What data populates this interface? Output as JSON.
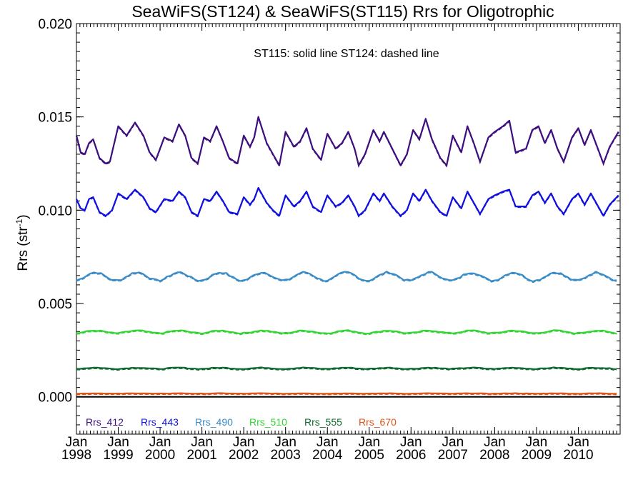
{
  "chart_data": {
    "type": "line",
    "title": "SeaWiFS(ST124) & SeaWiFS(ST115)  Rrs for Oligotrophic",
    "annotation": "ST115: solid line   ST124: dashed line",
    "ylabel": "Rrs (str",
    "ylabel_sup": "-1",
    "ylabel_close": ")",
    "xlabel": "",
    "ylim": [
      -0.002,
      0.02
    ],
    "yticks": [
      "0.000",
      "0.005",
      "0.010",
      "0.015",
      "0.020"
    ],
    "ytick_values": [
      0.0,
      0.005,
      0.01,
      0.015,
      0.02
    ],
    "xlim": [
      1998.0,
      2011.0
    ],
    "xticks": [
      {
        "month": "Jan",
        "year": "1998",
        "x": 1998.0
      },
      {
        "month": "Jan",
        "year": "1999",
        "x": 1999.0
      },
      {
        "month": "Jan",
        "year": "2000",
        "x": 2000.0
      },
      {
        "month": "Jan",
        "year": "2001",
        "x": 2001.0
      },
      {
        "month": "Jan",
        "year": "2002",
        "x": 2002.0
      },
      {
        "month": "Jan",
        "year": "2003",
        "x": 2003.0
      },
      {
        "month": "Jan",
        "year": "2004",
        "x": 2004.0
      },
      {
        "month": "Jan",
        "year": "2005",
        "x": 2005.0
      },
      {
        "month": "Jan",
        "year": "2006",
        "x": 2006.0
      },
      {
        "month": "Jan",
        "year": "2007",
        "x": 2007.0
      },
      {
        "month": "Jan",
        "year": "2008",
        "x": 2008.0
      },
      {
        "month": "Jan",
        "year": "2009",
        "x": 2009.0
      },
      {
        "month": "Jan",
        "year": "2010",
        "x": 2010.0
      }
    ],
    "zero_line": 0.0,
    "legend_placement": "bottom-left inside plot",
    "series": [
      {
        "name": "Rrs_412",
        "color": "#3f0f7f",
        "x_range": [
          1998.0,
          2010.96
        ],
        "anchors": [
          [
            1998.0,
            0.014
          ],
          [
            1998.1,
            0.0131
          ],
          [
            1998.2,
            0.013
          ],
          [
            1998.3,
            0.0136
          ],
          [
            1998.4,
            0.0138
          ],
          [
            1998.55,
            0.0128
          ],
          [
            1998.7,
            0.0125
          ],
          [
            1998.8,
            0.0126
          ],
          [
            1999.0,
            0.0145
          ],
          [
            1999.2,
            0.014
          ],
          [
            1999.4,
            0.0147
          ],
          [
            1999.6,
            0.014
          ],
          [
            1999.75,
            0.0131
          ],
          [
            1999.9,
            0.0127
          ],
          [
            2000.1,
            0.0139
          ],
          [
            2000.3,
            0.0137
          ],
          [
            2000.45,
            0.0146
          ],
          [
            2000.6,
            0.014
          ],
          [
            2000.75,
            0.0128
          ],
          [
            2000.9,
            0.0125
          ],
          [
            2001.05,
            0.0139
          ],
          [
            2001.2,
            0.0137
          ],
          [
            2001.35,
            0.0145
          ],
          [
            2001.5,
            0.0137
          ],
          [
            2001.65,
            0.0128
          ],
          [
            2001.85,
            0.0125
          ],
          [
            2002.0,
            0.014
          ],
          [
            2002.15,
            0.0134
          ],
          [
            2002.25,
            0.0139
          ],
          [
            2002.35,
            0.015
          ],
          [
            2002.55,
            0.0136
          ],
          [
            2002.7,
            0.013
          ],
          [
            2002.85,
            0.0124
          ],
          [
            2003.0,
            0.0142
          ],
          [
            2003.2,
            0.0134
          ],
          [
            2003.35,
            0.0137
          ],
          [
            2003.5,
            0.0144
          ],
          [
            2003.65,
            0.0133
          ],
          [
            2003.85,
            0.0127
          ],
          [
            2004.0,
            0.0141
          ],
          [
            2004.2,
            0.0133
          ],
          [
            2004.35,
            0.0136
          ],
          [
            2004.5,
            0.0142
          ],
          [
            2004.65,
            0.0133
          ],
          [
            2004.75,
            0.0124
          ],
          [
            2004.9,
            0.013
          ],
          [
            2005.1,
            0.0143
          ],
          [
            2005.25,
            0.0137
          ],
          [
            2005.35,
            0.0142
          ],
          [
            2005.55,
            0.0133
          ],
          [
            2005.75,
            0.0124
          ],
          [
            2005.9,
            0.013
          ],
          [
            2006.05,
            0.0143
          ],
          [
            2006.2,
            0.0138
          ],
          [
            2006.35,
            0.0149
          ],
          [
            2006.5,
            0.0138
          ],
          [
            2006.7,
            0.0128
          ],
          [
            2006.85,
            0.0124
          ],
          [
            2007.0,
            0.014
          ],
          [
            2007.2,
            0.0131
          ],
          [
            2007.35,
            0.0145
          ],
          [
            2007.5,
            0.0136
          ],
          [
            2007.65,
            0.0126
          ],
          [
            2007.85,
            0.0139
          ],
          [
            2008.0,
            0.0142
          ],
          [
            2008.2,
            0.0145
          ],
          [
            2008.35,
            0.0148
          ],
          [
            2008.5,
            0.0131
          ],
          [
            2008.75,
            0.0133
          ],
          [
            2008.9,
            0.0143
          ],
          [
            2009.05,
            0.0145
          ],
          [
            2009.2,
            0.0136
          ],
          [
            2009.35,
            0.0143
          ],
          [
            2009.5,
            0.0133
          ],
          [
            2009.65,
            0.0126
          ],
          [
            2009.85,
            0.0139
          ],
          [
            2010.0,
            0.0144
          ],
          [
            2010.15,
            0.0135
          ],
          [
            2010.3,
            0.0143
          ],
          [
            2010.45,
            0.0134
          ],
          [
            2010.6,
            0.0125
          ],
          [
            2010.75,
            0.0134
          ],
          [
            2010.96,
            0.0142
          ]
        ]
      },
      {
        "name": "Rrs_443",
        "color": "#1010e0",
        "x_range": [
          1998.0,
          2010.96
        ],
        "anchors": [
          [
            1998.0,
            0.0106
          ],
          [
            1998.1,
            0.0101
          ],
          [
            1998.2,
            0.01
          ],
          [
            1998.3,
            0.0106
          ],
          [
            1998.4,
            0.0107
          ],
          [
            1998.55,
            0.0099
          ],
          [
            1998.7,
            0.0097
          ],
          [
            1998.85,
            0.01
          ],
          [
            1999.0,
            0.0109
          ],
          [
            1999.2,
            0.0106
          ],
          [
            1999.4,
            0.0111
          ],
          [
            1999.6,
            0.0107
          ],
          [
            1999.75,
            0.0101
          ],
          [
            1999.9,
            0.0099
          ],
          [
            2000.1,
            0.0106
          ],
          [
            2000.3,
            0.0105
          ],
          [
            2000.45,
            0.011
          ],
          [
            2000.6,
            0.0107
          ],
          [
            2000.75,
            0.0099
          ],
          [
            2000.9,
            0.0097
          ],
          [
            2001.05,
            0.0106
          ],
          [
            2001.2,
            0.0105
          ],
          [
            2001.35,
            0.011
          ],
          [
            2001.5,
            0.0105
          ],
          [
            2001.65,
            0.0099
          ],
          [
            2001.85,
            0.0098
          ],
          [
            2002.0,
            0.0107
          ],
          [
            2002.15,
            0.0103
          ],
          [
            2002.25,
            0.0106
          ],
          [
            2002.35,
            0.0112
          ],
          [
            2002.55,
            0.0104
          ],
          [
            2002.7,
            0.01
          ],
          [
            2002.85,
            0.0097
          ],
          [
            2003.0,
            0.0108
          ],
          [
            2003.2,
            0.0102
          ],
          [
            2003.35,
            0.0105
          ],
          [
            2003.5,
            0.011
          ],
          [
            2003.65,
            0.0102
          ],
          [
            2003.85,
            0.0099
          ],
          [
            2004.0,
            0.0108
          ],
          [
            2004.2,
            0.0102
          ],
          [
            2004.35,
            0.0104
          ],
          [
            2004.5,
            0.0108
          ],
          [
            2004.65,
            0.0102
          ],
          [
            2004.75,
            0.0097
          ],
          [
            2004.9,
            0.01
          ],
          [
            2005.1,
            0.0109
          ],
          [
            2005.25,
            0.0105
          ],
          [
            2005.35,
            0.0109
          ],
          [
            2005.55,
            0.0102
          ],
          [
            2005.75,
            0.0097
          ],
          [
            2005.9,
            0.01
          ],
          [
            2006.05,
            0.0109
          ],
          [
            2006.2,
            0.0105
          ],
          [
            2006.35,
            0.0111
          ],
          [
            2006.5,
            0.0105
          ],
          [
            2006.7,
            0.0099
          ],
          [
            2006.85,
            0.0097
          ],
          [
            2007.0,
            0.0107
          ],
          [
            2007.2,
            0.0101
          ],
          [
            2007.35,
            0.011
          ],
          [
            2007.5,
            0.0104
          ],
          [
            2007.65,
            0.0098
          ],
          [
            2007.85,
            0.0106
          ],
          [
            2008.0,
            0.0108
          ],
          [
            2008.2,
            0.011
          ],
          [
            2008.35,
            0.0111
          ],
          [
            2008.5,
            0.0102
          ],
          [
            2008.75,
            0.0102
          ],
          [
            2008.9,
            0.0108
          ],
          [
            2009.05,
            0.011
          ],
          [
            2009.2,
            0.0104
          ],
          [
            2009.35,
            0.0109
          ],
          [
            2009.5,
            0.0102
          ],
          [
            2009.65,
            0.0098
          ],
          [
            2009.85,
            0.0106
          ],
          [
            2010.0,
            0.0109
          ],
          [
            2010.15,
            0.0103
          ],
          [
            2010.3,
            0.0109
          ],
          [
            2010.45,
            0.0103
          ],
          [
            2010.6,
            0.0097
          ],
          [
            2010.75,
            0.0103
          ],
          [
            2010.96,
            0.0108
          ]
        ]
      },
      {
        "name": "Rrs_490",
        "color": "#3a8cc8",
        "x_range": [
          1998.0,
          2010.96
        ],
        "base": 0.00645,
        "amplitude": 0.00022,
        "noise": 5e-05
      },
      {
        "name": "Rrs_510",
        "color": "#33d433",
        "x_range": [
          1998.0,
          2010.96
        ],
        "base": 0.00348,
        "amplitude": 7e-05,
        "noise": 3e-05
      },
      {
        "name": "Rrs_555",
        "color": "#0e6a2e",
        "x_range": [
          1998.0,
          2010.96
        ],
        "base": 0.00153,
        "amplitude": 3e-05,
        "noise": 2e-05
      },
      {
        "name": "Rrs_670",
        "color": "#e0541a",
        "x_range": [
          1998.0,
          2010.96
        ],
        "base": 0.00018,
        "amplitude": 1e-05,
        "noise": 1e-05
      }
    ]
  }
}
